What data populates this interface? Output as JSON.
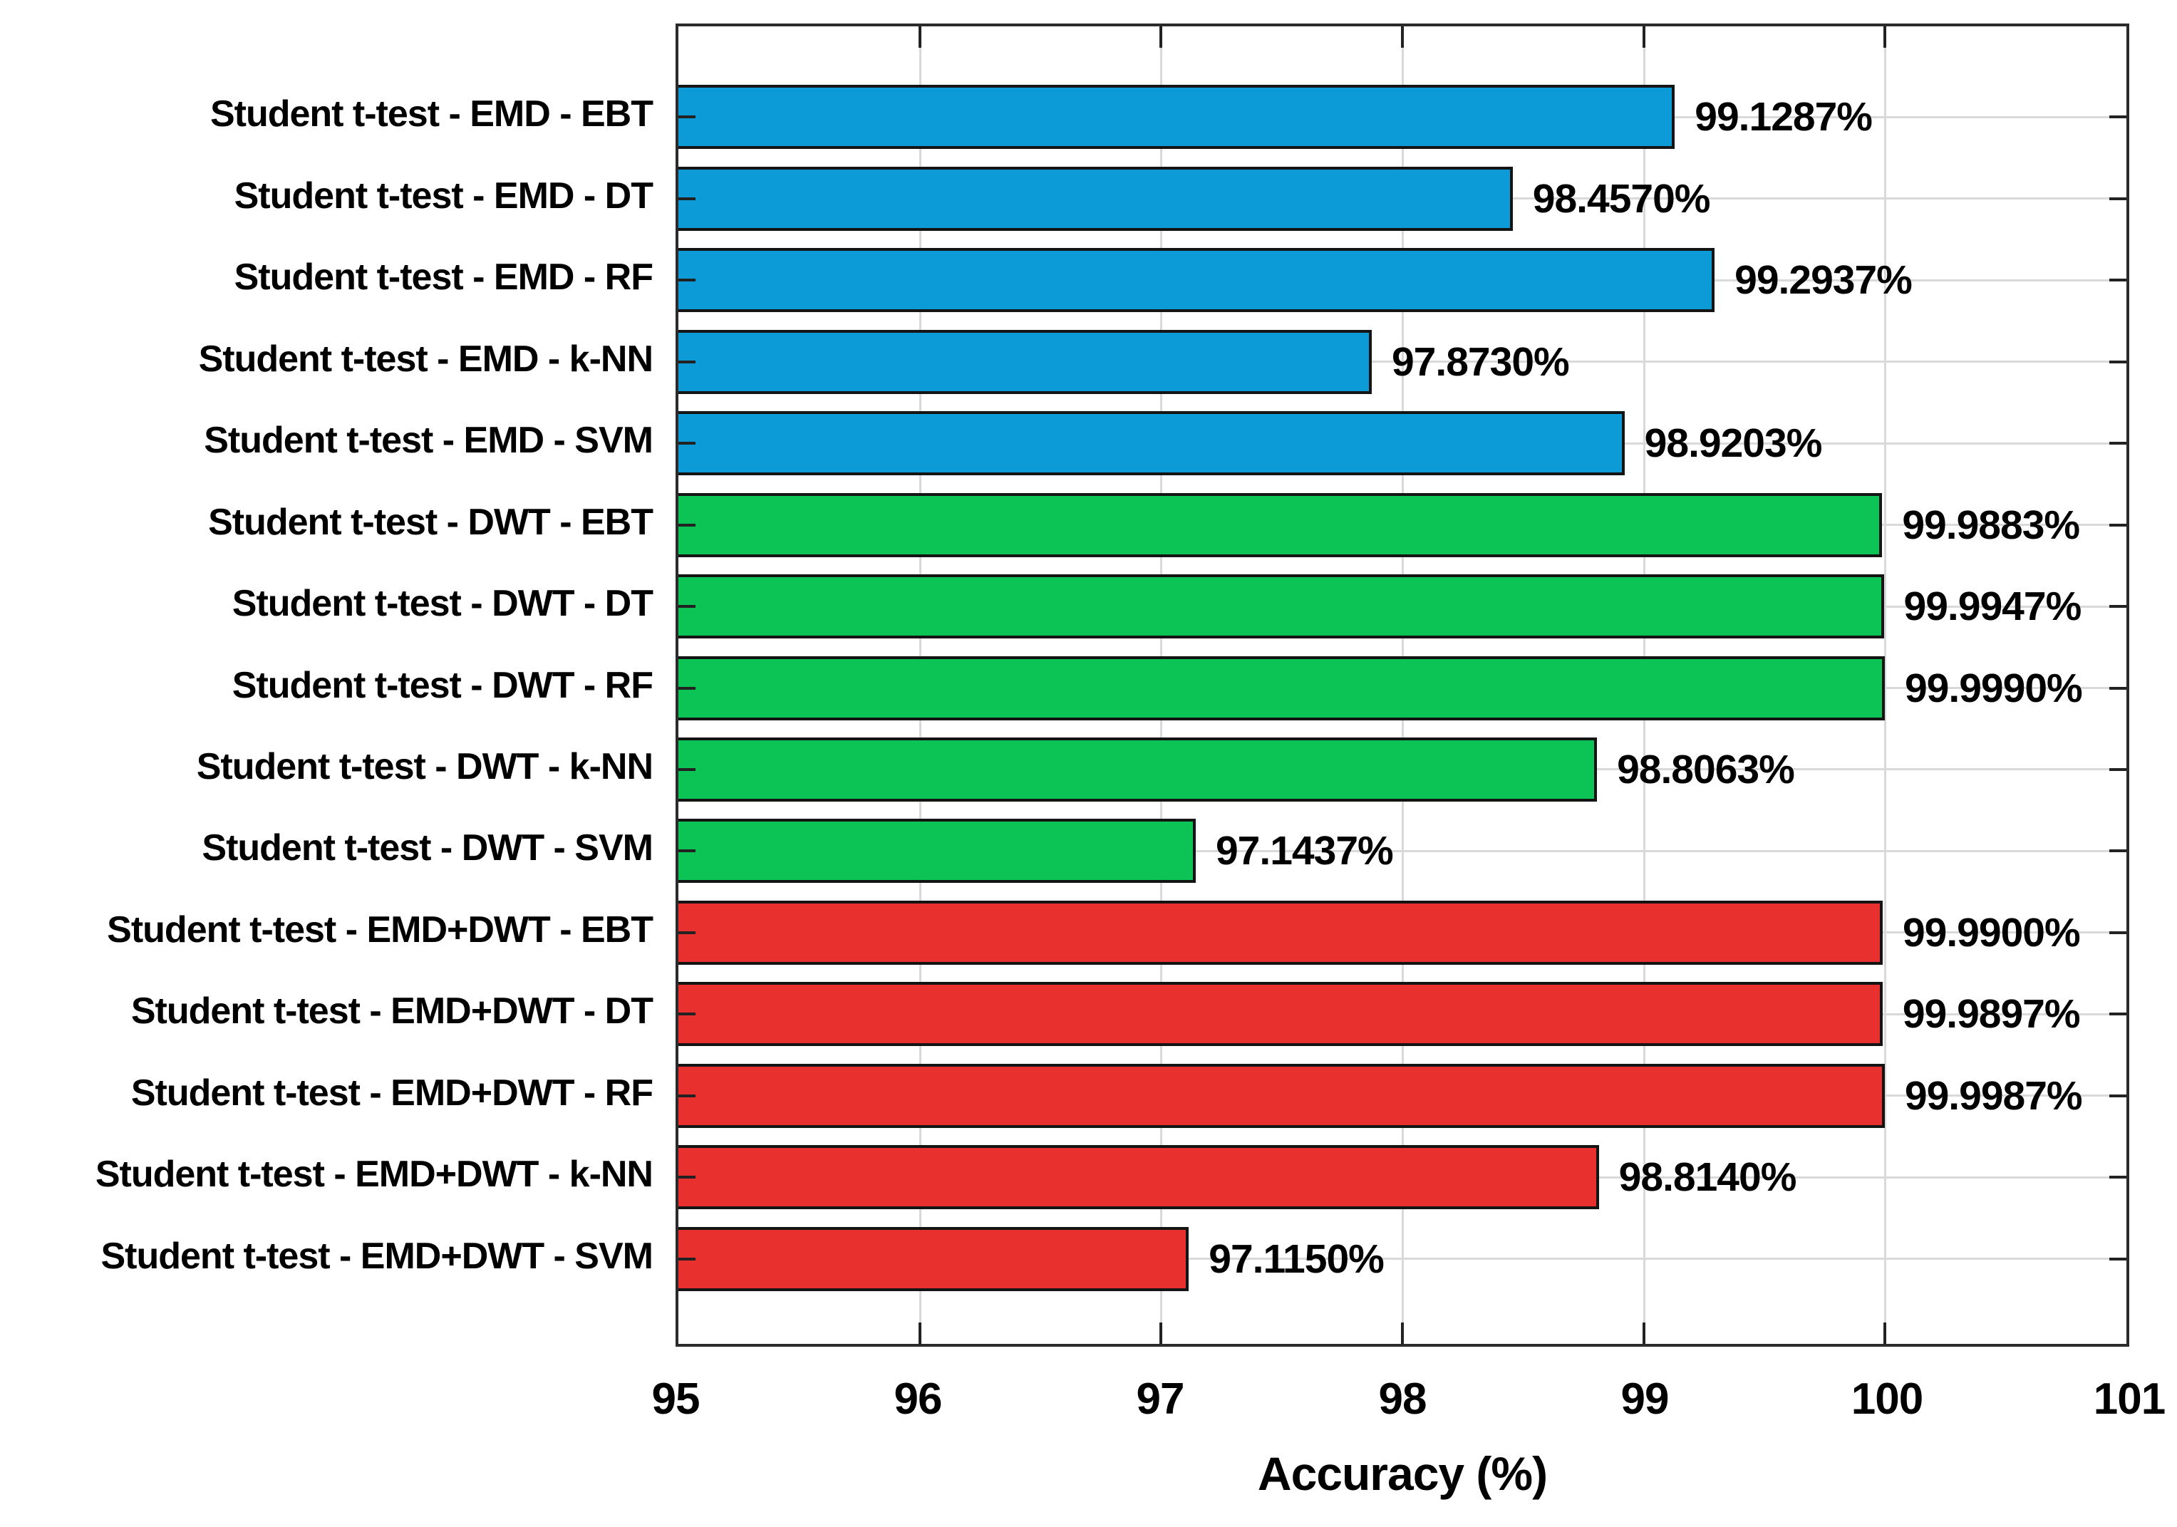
{
  "chart_data": {
    "type": "bar",
    "orientation": "horizontal",
    "title": "",
    "xlabel": "Accuracy (%)",
    "ylabel": "",
    "xlim": [
      95,
      101
    ],
    "x_ticks": [
      95,
      96,
      97,
      98,
      99,
      100,
      101
    ],
    "grid": true,
    "legend_position": "none",
    "bars": [
      {
        "label": "Student t-test - EMD - EBT",
        "value": 99.1287,
        "display": "99.1287%",
        "group": "EMD"
      },
      {
        "label": "Student t-test - EMD - DT",
        "value": 98.457,
        "display": "98.4570%",
        "group": "EMD"
      },
      {
        "label": "Student t-test - EMD - RF",
        "value": 99.2937,
        "display": "99.2937%",
        "group": "EMD"
      },
      {
        "label": "Student t-test - EMD - k-NN",
        "value": 97.873,
        "display": "97.8730%",
        "group": "EMD"
      },
      {
        "label": "Student t-test - EMD - SVM",
        "value": 98.9203,
        "display": "98.9203%",
        "group": "EMD"
      },
      {
        "label": "Student t-test - DWT - EBT",
        "value": 99.9883,
        "display": "99.9883%",
        "group": "DWT"
      },
      {
        "label": "Student t-test - DWT - DT",
        "value": 99.9947,
        "display": "99.9947%",
        "group": "DWT"
      },
      {
        "label": "Student t-test - DWT - RF",
        "value": 99.999,
        "display": "99.9990%",
        "group": "DWT"
      },
      {
        "label": "Student t-test - DWT - k-NN",
        "value": 98.8063,
        "display": "98.8063%",
        "group": "DWT"
      },
      {
        "label": "Student t-test - DWT - SVM",
        "value": 97.1437,
        "display": "97.1437%",
        "group": "DWT"
      },
      {
        "label": "Student t-test - EMD+DWT - EBT",
        "value": 99.99,
        "display": "99.9900%",
        "group": "EMD+DWT"
      },
      {
        "label": "Student t-test - EMD+DWT - DT",
        "value": 99.9897,
        "display": "99.9897%",
        "group": "EMD+DWT"
      },
      {
        "label": "Student t-test - EMD+DWT - RF",
        "value": 99.9987,
        "display": "99.9987%",
        "group": "EMD+DWT"
      },
      {
        "label": "Student t-test - EMD+DWT - k-NN",
        "value": 98.814,
        "display": "98.8140%",
        "group": "EMD+DWT"
      },
      {
        "label": "Student t-test - EMD+DWT - SVM",
        "value": 97.115,
        "display": "97.1150%",
        "group": "EMD+DWT"
      }
    ],
    "group_colors": {
      "EMD": "#0D9BD8",
      "DWT": "#0CC455",
      "EMD+DWT": "#E8312F"
    },
    "style": {
      "background": "#ffffff",
      "text_color": "#000000",
      "box_color": "#2b2b2b",
      "grid_color": "#d9d9d9",
      "bar_border_color": "#141414",
      "tick_color": "#222222"
    }
  }
}
